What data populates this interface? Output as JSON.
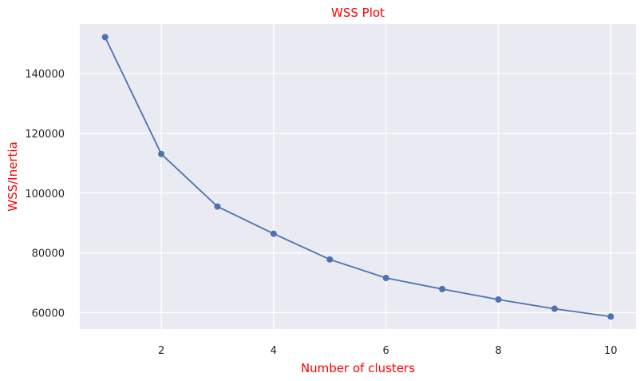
{
  "chart_data": {
    "type": "line",
    "title": "WSS Plot",
    "xlabel": "Number of clusters",
    "ylabel": "WSS/Inertia",
    "x": [
      1,
      2,
      3,
      4,
      5,
      6,
      7,
      8,
      9,
      10
    ],
    "values": [
      152200,
      113100,
      95500,
      86400,
      77800,
      71600,
      67900,
      64400,
      61300,
      58700
    ],
    "xlim": [
      0.55,
      10.45
    ],
    "ylim": [
      54500,
      156600
    ],
    "xticks": [
      2,
      4,
      6,
      8,
      10
    ],
    "yticks": [
      60000,
      80000,
      100000,
      120000,
      140000
    ],
    "grid": true,
    "marker": "circle",
    "colors": {
      "line": "#4c72b0",
      "background": "#eaeaf2",
      "grid": "#ffffff",
      "title": "#ff0000",
      "axis_labels": "#ff0000",
      "tick_labels": "#262626"
    }
  }
}
